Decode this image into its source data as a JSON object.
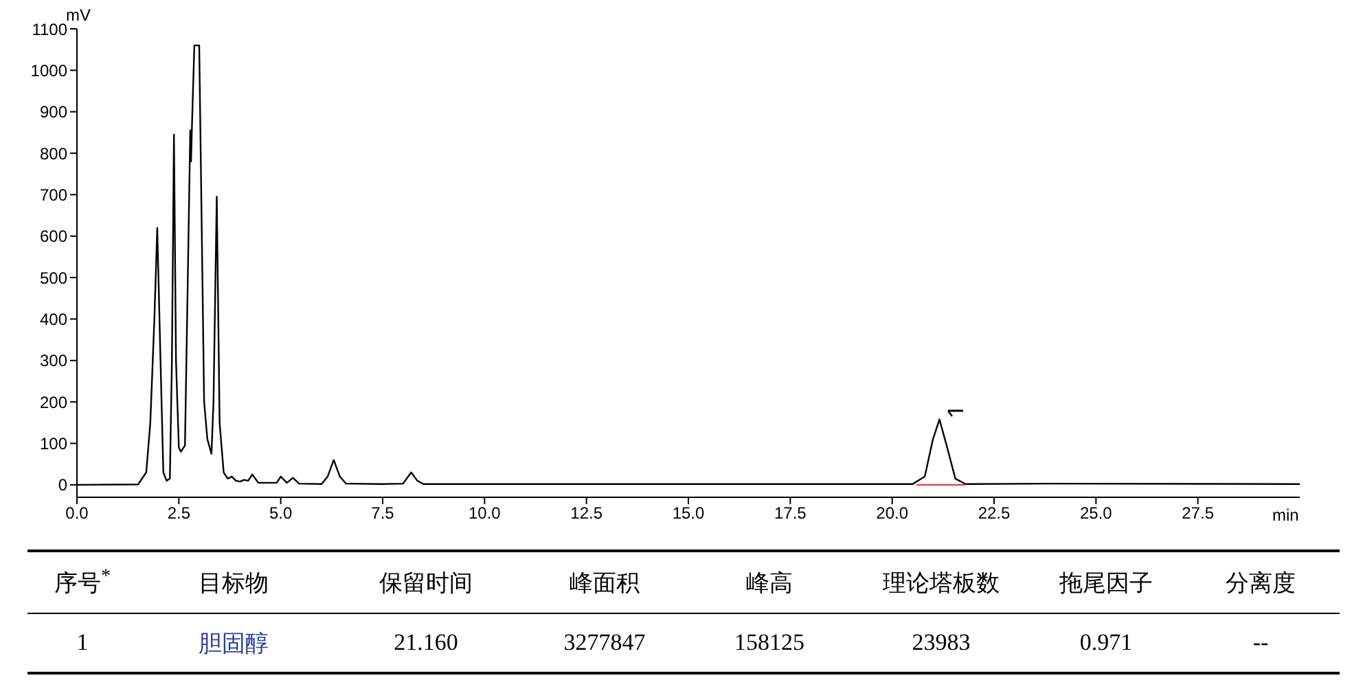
{
  "chart_data": {
    "type": "line",
    "xlabel": "min",
    "ylabel": "mV",
    "xlim": [
      0,
      30
    ],
    "ylim": [
      -30,
      1100
    ],
    "xticks": [
      {
        "value": 0,
        "label": "0.0"
      },
      {
        "value": 2.5,
        "label": "2.5"
      },
      {
        "value": 5,
        "label": "5.0"
      },
      {
        "value": 7.5,
        "label": "7.5"
      },
      {
        "value": 10,
        "label": "10.0"
      },
      {
        "value": 12.5,
        "label": "12.5"
      },
      {
        "value": 15,
        "label": "15.0"
      },
      {
        "value": 17.5,
        "label": "17.5"
      },
      {
        "value": 20,
        "label": "20.0"
      },
      {
        "value": 22.5,
        "label": "22.5"
      },
      {
        "value": 25,
        "label": "25.0"
      },
      {
        "value": 27.5,
        "label": "27.5"
      }
    ],
    "yticks": [
      0,
      100,
      200,
      300,
      400,
      500,
      600,
      700,
      800,
      900,
      1000,
      1100
    ],
    "marker": "none",
    "line_style": "solid",
    "series": [
      {
        "color": "#000000",
        "x": [
          0,
          1.5,
          1.7,
          1.8,
          1.9,
          1.97,
          2.05,
          2.12,
          2.2,
          2.28,
          2.33,
          2.38,
          2.43,
          2.5,
          2.55,
          2.65,
          2.72,
          2.78,
          2.8,
          2.82,
          2.88,
          3.0,
          3.05,
          3.12,
          3.2,
          3.3,
          3.35,
          3.43,
          3.5,
          3.6,
          3.7,
          3.8,
          3.9,
          4.0,
          4.1,
          4.2,
          4.3,
          4.45,
          4.9,
          5.0,
          5.15,
          5.3,
          5.45,
          6.0,
          6.15,
          6.3,
          6.45,
          6.6,
          7.5,
          8.0,
          8.2,
          8.35,
          8.5,
          12,
          20.5,
          20.8,
          21.0,
          21.16,
          21.35,
          21.55,
          21.8,
          24,
          30
        ],
        "values": [
          0,
          1,
          30,
          150,
          400,
          620,
          300,
          30,
          10,
          15,
          300,
          845,
          300,
          90,
          80,
          95,
          500,
          855,
          780,
          860,
          1060,
          1060,
          700,
          200,
          110,
          75,
          200,
          695,
          150,
          30,
          15,
          20,
          10,
          8,
          12,
          10,
          25,
          5,
          5,
          20,
          5,
          17,
          3,
          2,
          20,
          60,
          20,
          3,
          2,
          3,
          30,
          10,
          2,
          2,
          2,
          20,
          110,
          158,
          90,
          15,
          2,
          3,
          2
        ]
      },
      {
        "color": "#e04040",
        "x": [
          20.6,
          21.8
        ],
        "values": [
          0,
          0
        ]
      }
    ],
    "annotations": [
      "序号$^{*}$",
      "目标物",
      "保留时间",
      "峰面积",
      "峰高",
      "理论塔板数",
      "拖尾因子",
      "分离度",
      "1",
      "胆固醇",
      "21.160",
      "3277847",
      "158125",
      "23983",
      "0.971",
      "--"
    ]
  }
}
